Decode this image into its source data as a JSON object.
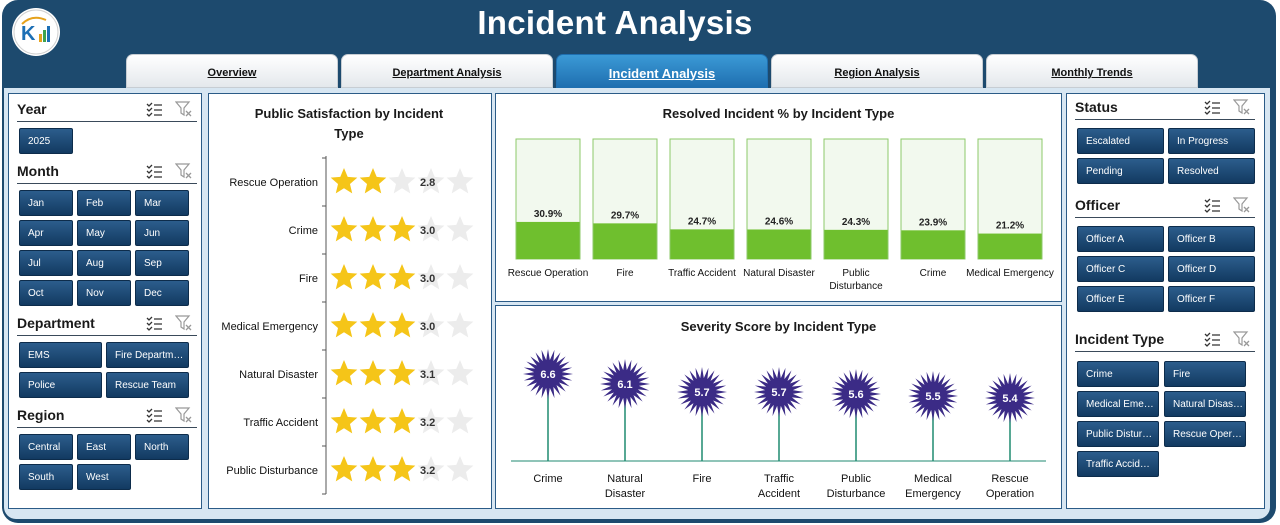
{
  "header": {
    "title": "Incident Analysis"
  },
  "tabs": [
    {
      "label": "Overview",
      "active": false
    },
    {
      "label": "Department Analysis",
      "active": false
    },
    {
      "label": "Incident Analysis",
      "active": true
    },
    {
      "label": "Region Analysis",
      "active": false
    },
    {
      "label": "Monthly Trends",
      "active": false
    }
  ],
  "left_slicers": {
    "year": {
      "title": "Year",
      "items": [
        "2025"
      ]
    },
    "month": {
      "title": "Month",
      "items": [
        "Jan",
        "Feb",
        "Mar",
        "Apr",
        "May",
        "Jun",
        "Jul",
        "Aug",
        "Sep",
        "Oct",
        "Nov",
        "Dec"
      ]
    },
    "department": {
      "title": "Department",
      "items": [
        "EMS",
        "Fire Departm…",
        "Police",
        "Rescue Team"
      ]
    },
    "region": {
      "title": "Region",
      "items": [
        "Central",
        "East",
        "North",
        "South",
        "West"
      ]
    }
  },
  "right_slicers": {
    "status": {
      "title": "Status",
      "items": [
        "Escalated",
        "In Progress",
        "Pending",
        "Resolved"
      ]
    },
    "officer": {
      "title": "Officer",
      "items": [
        "Officer A",
        "Officer B",
        "Officer C",
        "Officer D",
        "Officer E",
        "Officer F"
      ]
    },
    "incident_type": {
      "title": "Incident Type",
      "items": [
        "Crime",
        "Fire",
        "Medical Eme…",
        "Natural Disas…",
        "Public Distur…",
        "Rescue Oper…",
        "Traffic Accid…"
      ]
    }
  },
  "chart_data": [
    {
      "type": "bar",
      "title": "Public Satisfaction by Incident Type",
      "categories": [
        "Rescue Operation",
        "Crime",
        "Fire",
        "Medical Emergency",
        "Natural Disaster",
        "Traffic Accident",
        "Public Disturbance"
      ],
      "values": [
        2.8,
        3.0,
        3.0,
        3.0,
        3.1,
        3.2,
        3.2
      ],
      "value_labels": [
        "2.8",
        "3.0",
        "3.0",
        "3.0",
        "3.1",
        "3.2",
        "3.2"
      ],
      "max_rating": 5,
      "colors": {
        "filled_star": "#f5c518",
        "empty_star": "#ececec"
      }
    },
    {
      "type": "bar",
      "title": "Resolved Incident % by Incident Type",
      "categories": [
        "Rescue Operation",
        "Fire",
        "Traffic Accident",
        "Natural Disaster",
        "Public Disturbance",
        "Crime",
        "Medical Emergency"
      ],
      "values": [
        30.9,
        29.7,
        24.7,
        24.6,
        24.3,
        23.9,
        21.2
      ],
      "value_labels": [
        "30.9%",
        "29.7%",
        "24.7%",
        "24.6%",
        "24.3%",
        "23.9%",
        "21.2%"
      ],
      "ylim": [
        0,
        100
      ],
      "colors": {
        "fill": "#6fbf2e",
        "container": "#f2f9ee",
        "container_border": "#8cc96a"
      }
    },
    {
      "type": "scatter",
      "title": "Severity Score by Incident Type",
      "categories": [
        "Crime",
        "Natural Disaster",
        "Fire",
        "Traffic Accident",
        "Public Disturbance",
        "Medical Emergency",
        "Rescue Operation"
      ],
      "values": [
        6.6,
        6.1,
        5.7,
        5.7,
        5.6,
        5.5,
        5.4
      ],
      "value_labels": [
        "6.6",
        "6.1",
        "5.7",
        "5.7",
        "5.6",
        "5.5",
        "5.4"
      ],
      "colors": {
        "marker": "#3b2b86",
        "stem": "#1f8a70"
      }
    }
  ],
  "colors": {
    "header_bg": "#1d4a6e",
    "slicer_button": "#1a4a75",
    "active_tab": "#2a85c6"
  }
}
